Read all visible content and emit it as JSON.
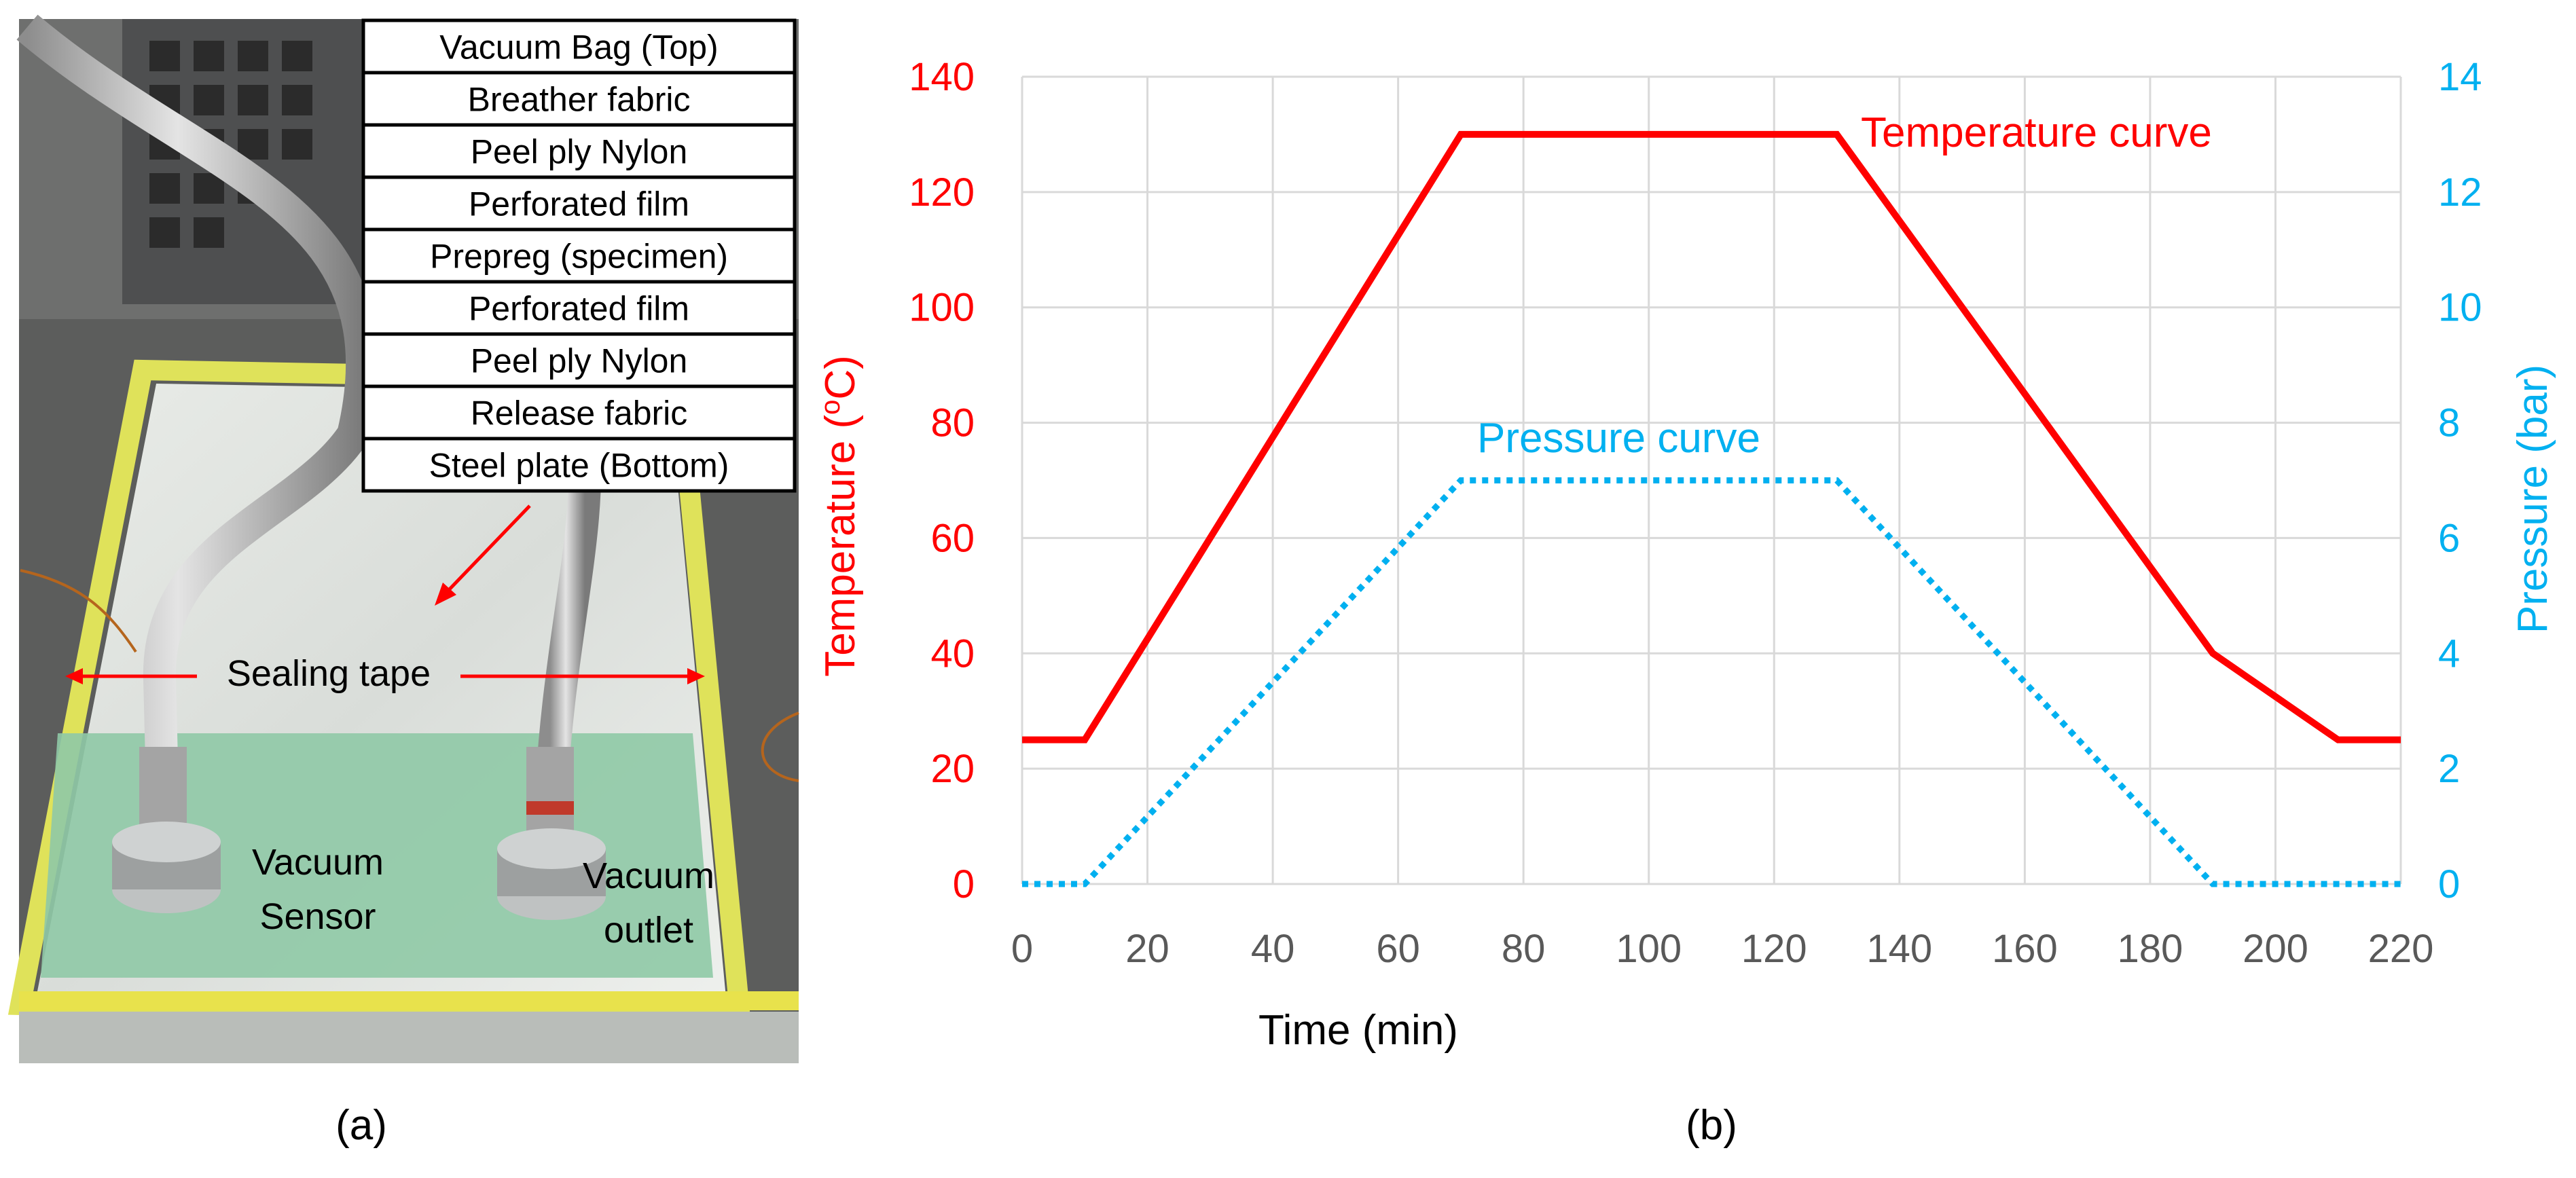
{
  "panel_a": {
    "caption": "(a)",
    "layers": [
      "Vacuum Bag (Top)",
      "Breather fabric",
      "Peel ply Nylon",
      "Perforated film",
      "Prepreg (specimen)",
      "Perforated film",
      "Peel ply Nylon",
      "Release fabric",
      "Steel plate (Bottom)"
    ],
    "sealing_label": "Sealing tape",
    "sensor_label": [
      "Vacuum",
      "Sensor"
    ],
    "outlet_label": [
      "Vacuum",
      "outlet"
    ]
  },
  "panel_b": {
    "caption": "(b)"
  },
  "chart_data": {
    "type": "line",
    "xlabel": "Time (min)",
    "ylabel": "Temperature (",
    "ylabel_sup": "o",
    "ylabel_tail": "C)",
    "y2label": "Pressure (bar)",
    "xlim": [
      0,
      220
    ],
    "ylim": [
      0,
      140
    ],
    "y2lim": [
      0,
      14
    ],
    "xticks": [
      0,
      20,
      40,
      60,
      80,
      100,
      120,
      140,
      160,
      180,
      200,
      220
    ],
    "yticks": [
      0,
      20,
      40,
      60,
      80,
      100,
      120,
      140
    ],
    "y2ticks": [
      0,
      2,
      4,
      6,
      8,
      10,
      12,
      14
    ],
    "grid": true,
    "series": [
      {
        "name": "Temperature curve",
        "axis": "left",
        "color": "#ff0000",
        "style": "solid",
        "x": [
          0,
          10,
          70,
          130,
          190,
          210,
          220
        ],
        "y": [
          25,
          25,
          130,
          130,
          40,
          25,
          25
        ]
      },
      {
        "name": "Pressure curve",
        "axis": "right",
        "color": "#00b0f0",
        "style": "dotted",
        "x": [
          0,
          10,
          70,
          130,
          190,
          220
        ],
        "y": [
          0,
          0,
          7,
          7,
          0,
          0
        ]
      }
    ],
    "colors": {
      "left_axis": "#ff0000",
      "right_axis": "#00b0f0",
      "tick_x": "#595959",
      "grid": "#d9d9d9"
    }
  }
}
